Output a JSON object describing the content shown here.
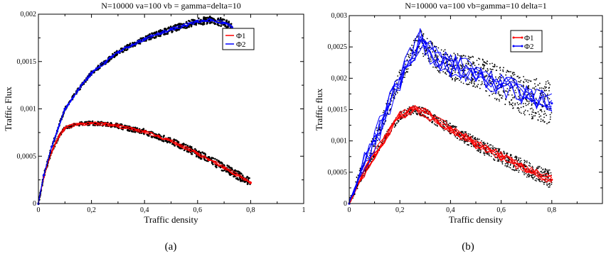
{
  "chart_data": [
    {
      "type": "line",
      "title": "N=10000   va=100  vb = gamma=delta=10",
      "xlabel": "Traffic density",
      "ylabel": "Traffic Flux",
      "xlim": [
        0,
        1
      ],
      "ylim": [
        0,
        0.002
      ],
      "xticks": [
        "0",
        "0,2",
        "0,4",
        "0,6",
        "0,8",
        "1"
      ],
      "yticks": [
        "0",
        "0,0005",
        "0,001",
        "0,0015",
        "0,002"
      ],
      "legend_position": "top-right",
      "caption": "(a)",
      "series": [
        {
          "name": "Φ1",
          "color": "#ff0000",
          "x": [
            0,
            0.02,
            0.05,
            0.08,
            0.1,
            0.15,
            0.2,
            0.25,
            0.3,
            0.4,
            0.5,
            0.6,
            0.7,
            0.8
          ],
          "y": [
            0,
            0.00028,
            0.00055,
            0.00072,
            0.0008,
            0.00084,
            0.00085,
            0.00084,
            0.00082,
            0.00076,
            0.00066,
            0.00053,
            0.00038,
            0.00022
          ]
        },
        {
          "name": "Φ2",
          "color": "#0000ff",
          "x": [
            0,
            0.02,
            0.05,
            0.1,
            0.15,
            0.2,
            0.3,
            0.4,
            0.5,
            0.6,
            0.65,
            0.7,
            0.73
          ],
          "y": [
            0,
            0.0003,
            0.0006,
            0.001,
            0.0012,
            0.00138,
            0.0016,
            0.00174,
            0.00184,
            0.00192,
            0.00194,
            0.00191,
            0.00186
          ]
        }
      ]
    },
    {
      "type": "scatter",
      "title": "N=10000   va=100  vb=gamma=10  delta=1",
      "xlabel": "Traffic density",
      "ylabel": "Traffic flux",
      "xlim": [
        0,
        1
      ],
      "ylim": [
        0,
        0.003
      ],
      "xticks": [
        "0",
        "0,2",
        "0,4",
        "0,6",
        "0,8"
      ],
      "yticks": [
        "0",
        "0,0005",
        "0,001",
        "0,0015",
        "0,002",
        "0,0025",
        "0,003"
      ],
      "legend_position": "top-right",
      "caption": "(b)",
      "series": [
        {
          "name": "Φ1",
          "color": "#ff0000",
          "x": [
            0,
            0.05,
            0.1,
            0.15,
            0.2,
            0.25,
            0.3,
            0.35,
            0.4,
            0.5,
            0.6,
            0.7,
            0.8
          ],
          "y": [
            0,
            0.00042,
            0.00078,
            0.0011,
            0.0014,
            0.0015,
            0.00145,
            0.0013,
            0.0012,
            0.00095,
            0.00075,
            0.00055,
            0.00038
          ]
        },
        {
          "name": "Φ2",
          "color": "#0000ff",
          "x": [
            0,
            0.05,
            0.1,
            0.15,
            0.2,
            0.25,
            0.28,
            0.3,
            0.35,
            0.4,
            0.5,
            0.6,
            0.7,
            0.8
          ],
          "y": [
            0,
            0.00055,
            0.001,
            0.0015,
            0.002,
            0.0024,
            0.0026,
            0.0025,
            0.0023,
            0.0022,
            0.0021,
            0.0019,
            0.0017,
            0.0016
          ]
        }
      ]
    }
  ]
}
